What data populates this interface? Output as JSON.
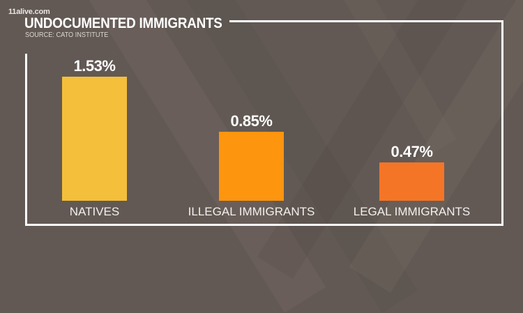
{
  "header": {
    "logo": "11alive.com",
    "title": "UNDOCUMENTED IMMIGRANTS",
    "source": "SOURCE: CATO INSTITUTE"
  },
  "colors": {
    "background": "#625954",
    "frame": "#ffffff",
    "bar_natives": "#f4bf3a",
    "bar_illegal": "#fd950f",
    "bar_legal": "#f57527"
  },
  "bars": [
    {
      "label": "NATIVES",
      "value_label": "1.53%"
    },
    {
      "label": "ILLEGAL IMMIGRANTS",
      "value_label": "0.85%"
    },
    {
      "label": "LEGAL IMMIGRANTS",
      "value_label": "0.47%"
    }
  ],
  "chart_data": {
    "type": "bar",
    "title": "UNDOCUMENTED IMMIGRANTS",
    "subtitle": "SOURCE: CATO INSTITUTE",
    "categories": [
      "NATIVES",
      "ILLEGAL IMMIGRANTS",
      "LEGAL IMMIGRANTS"
    ],
    "values": [
      1.53,
      0.85,
      0.47
    ],
    "value_labels": [
      "1.53%",
      "0.85%",
      "0.47%"
    ],
    "colors": [
      "#f4bf3a",
      "#fd950f",
      "#f57527"
    ],
    "xlabel": "",
    "ylabel": "",
    "ylim": [
      0,
      1.53
    ],
    "grid": false,
    "legend": "none"
  }
}
